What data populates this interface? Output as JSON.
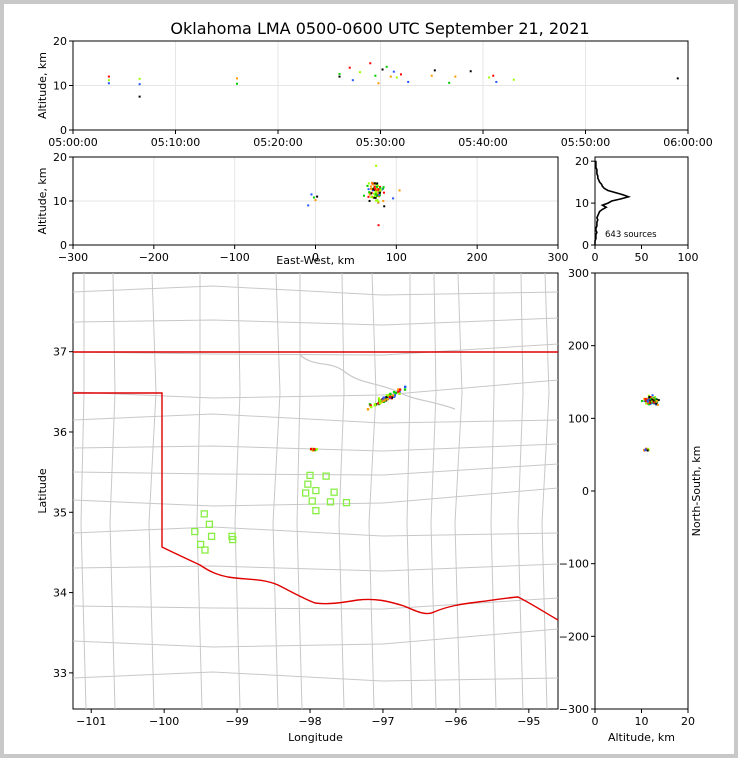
{
  "title": "Oklahoma LMA 0500-0600 UTC September 21, 2021",
  "colors": {
    "state_border": "#e00000",
    "county_lines": "#c8c8c8",
    "stations": "#88ee44",
    "grid": "#e6e6e6"
  },
  "chart_data": [
    {
      "name": "time-height",
      "type": "scatter",
      "ylabel": "Altitude, km",
      "xlim": [
        0,
        60
      ],
      "ylim": [
        0,
        20
      ],
      "xticks": [
        0,
        10,
        20,
        30,
        40,
        50,
        60
      ],
      "xtick_labels": [
        "05:00:00",
        "05:10:00",
        "05:20:00",
        "05:30:00",
        "05:40:00",
        "05:50:00",
        "06:00:00"
      ],
      "yticks": [
        0,
        10,
        20
      ],
      "ytick_labels": [
        "0",
        "10",
        "20"
      ],
      "points": [
        [
          3.5,
          10.5
        ],
        [
          3.5,
          11.2
        ],
        [
          3.5,
          12.0
        ],
        [
          6.5,
          10.3
        ],
        [
          6.5,
          11.5
        ],
        [
          6.5,
          7.5
        ],
        [
          16,
          10.4
        ],
        [
          16,
          11.6
        ],
        [
          26,
          12.0
        ],
        [
          26,
          12.6
        ],
        [
          27,
          14.0
        ],
        [
          27.3,
          11.2
        ],
        [
          28,
          13.0
        ],
        [
          29,
          15.0
        ],
        [
          29.5,
          12.2
        ],
        [
          29.8,
          10.5
        ],
        [
          30.2,
          13.6
        ],
        [
          30.6,
          14.2
        ],
        [
          31,
          12.0
        ],
        [
          31.3,
          13.1
        ],
        [
          31.6,
          11.8
        ],
        [
          32,
          12.5
        ],
        [
          32.7,
          10.8
        ],
        [
          35,
          12.2
        ],
        [
          35.3,
          13.4
        ],
        [
          36.7,
          10.6
        ],
        [
          37.3,
          12.0
        ],
        [
          38.8,
          13.2
        ],
        [
          40.6,
          11.8
        ],
        [
          41,
          12.2
        ],
        [
          41.3,
          10.8
        ],
        [
          43,
          11.3
        ],
        [
          59,
          11.6
        ]
      ]
    },
    {
      "name": "east-west-height",
      "type": "scatter",
      "xlabel": "East-West, km",
      "ylabel": "Altitude, km",
      "xlim": [
        -300,
        300
      ],
      "ylim": [
        0,
        20
      ],
      "xticks": [
        -300,
        -200,
        -100,
        0,
        100,
        200,
        300
      ],
      "xtick_labels": [
        "−300",
        "−200",
        "−100",
        "0",
        "100",
        "200",
        "300"
      ],
      "yticks": [
        0,
        10,
        20
      ],
      "ytick_labels": [
        "0",
        "10",
        "20"
      ],
      "cluster_center_km": [
        75,
        12
      ],
      "extra_points": [
        [
          -5,
          11.5
        ],
        [
          -2,
          10.8
        ],
        [
          0,
          10.2
        ],
        [
          2,
          11.0
        ],
        [
          -9,
          9.0
        ],
        [
          75,
          18.0
        ],
        [
          78,
          4.5
        ],
        [
          96,
          10.6
        ],
        [
          60,
          11.2
        ],
        [
          104,
          12.4
        ],
        [
          85,
          8.8
        ]
      ]
    },
    {
      "name": "altitude-histogram",
      "type": "histogram",
      "annotation": "643 sources",
      "xlim": [
        0,
        100
      ],
      "ylim": [
        0,
        21
      ],
      "xticks": [
        0,
        50,
        100
      ],
      "xtick_labels": [
        "0",
        "50",
        "100"
      ],
      "yticks": [
        0,
        10,
        20
      ],
      "ytick_labels": [
        "0",
        "10",
        "20"
      ],
      "bins": [
        [
          0.5,
          0
        ],
        [
          1,
          0
        ],
        [
          1.5,
          1
        ],
        [
          2,
          1
        ],
        [
          2.5,
          1
        ],
        [
          3,
          2
        ],
        [
          3.5,
          1
        ],
        [
          4,
          1
        ],
        [
          4.5,
          2
        ],
        [
          5,
          2
        ],
        [
          5.5,
          2
        ],
        [
          6,
          3
        ],
        [
          6.5,
          2
        ],
        [
          7,
          3
        ],
        [
          7.5,
          4
        ],
        [
          8,
          5
        ],
        [
          8.5,
          8
        ],
        [
          9,
          12
        ],
        [
          9.5,
          8
        ],
        [
          10,
          14
        ],
        [
          10.5,
          18
        ],
        [
          11,
          28
        ],
        [
          11.5,
          36
        ],
        [
          12,
          30
        ],
        [
          12.5,
          22
        ],
        [
          13,
          14
        ],
        [
          13.5,
          10
        ],
        [
          14,
          8
        ],
        [
          14.5,
          7
        ],
        [
          15,
          5
        ],
        [
          15.5,
          4
        ],
        [
          16,
          3
        ],
        [
          16.5,
          3
        ],
        [
          17,
          2
        ],
        [
          17.5,
          2
        ],
        [
          18,
          2
        ],
        [
          18.5,
          1
        ],
        [
          19,
          1
        ],
        [
          19.5,
          1
        ],
        [
          20,
          1
        ]
      ]
    },
    {
      "name": "plan-view-map",
      "type": "map",
      "xlabel": "Longitude",
      "ylabel": "Latitude",
      "xlim": [
        -101.25,
        -94.6
      ],
      "ylim": [
        32.55,
        37.98
      ],
      "xticks": [
        -101,
        -100,
        -99,
        -98,
        -97,
        -96,
        -95
      ],
      "xtick_labels": [
        "−101",
        "−100",
        "−99",
        "−98",
        "−97",
        "−96",
        "−95"
      ],
      "yticks": [
        33,
        34,
        35,
        36,
        37
      ],
      "ytick_labels": [
        "33",
        "34",
        "35",
        "36",
        "37"
      ],
      "stations": [
        [
          -97.78,
          35.45
        ],
        [
          -98.0,
          35.46
        ],
        [
          -98.03,
          35.35
        ],
        [
          -98.06,
          35.24
        ],
        [
          -97.92,
          35.27
        ],
        [
          -97.67,
          35.25
        ],
        [
          -97.72,
          35.13
        ],
        [
          -97.5,
          35.12
        ],
        [
          -97.97,
          35.14
        ],
        [
          -97.92,
          35.02
        ],
        [
          -99.45,
          34.98
        ],
        [
          -99.38,
          34.85
        ],
        [
          -99.58,
          34.76
        ],
        [
          -99.35,
          34.7
        ],
        [
          -99.07,
          34.7
        ],
        [
          -99.06,
          34.66
        ],
        [
          -99.5,
          34.6
        ],
        [
          -99.44,
          34.53
        ]
      ],
      "source_clusters": [
        {
          "center": [
            -96.95,
            36.42
          ],
          "count": 70
        },
        {
          "center": [
            -97.95,
            35.78
          ],
          "count": 10
        }
      ]
    },
    {
      "name": "north-south-height",
      "type": "scatter",
      "xlabel": "Altitude, km",
      "ylabel": "North-South, km",
      "xlim": [
        0,
        20
      ],
      "ylim": [
        -300,
        300
      ],
      "xticks": [
        0,
        10,
        20
      ],
      "xtick_labels": [
        "0",
        "10",
        "20"
      ],
      "yticks": [
        -300,
        -200,
        -100,
        0,
        100,
        200,
        300
      ],
      "ytick_labels": [
        "−300",
        "−200",
        "−100",
        "0",
        "100",
        "200",
        "300"
      ],
      "clusters": [
        {
          "center": [
            12,
            125
          ],
          "count": 120
        },
        {
          "center": [
            11,
            57
          ],
          "count": 14
        }
      ]
    }
  ]
}
